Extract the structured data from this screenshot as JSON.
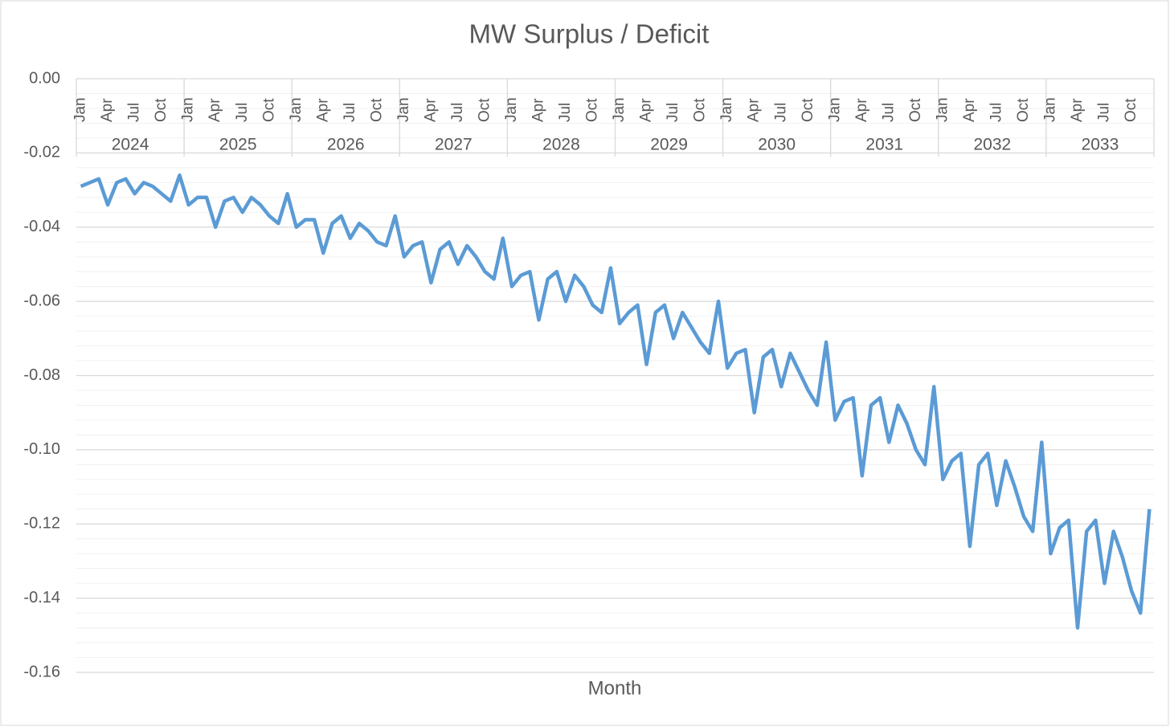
{
  "chart_data": {
    "type": "line",
    "title": "MW Surplus / Deficit",
    "x_label": "Month",
    "categories": [
      "Jan",
      null,
      null,
      "Apr",
      null,
      null,
      "Jul",
      null,
      null,
      "Oct",
      null,
      null,
      "Jan",
      null,
      null,
      "Apr",
      null,
      null,
      "Jul",
      null,
      null,
      "Oct",
      null,
      null,
      "Jan",
      null,
      null,
      "Apr",
      null,
      null,
      "Jul",
      null,
      null,
      "Oct",
      null,
      null,
      "Jan",
      null,
      null,
      "Apr",
      null,
      null,
      "Jul",
      null,
      null,
      "Oct",
      null,
      null,
      "Jan",
      null,
      null,
      "Apr",
      null,
      null,
      "Jul",
      null,
      null,
      "Oct",
      null,
      null,
      "Jan",
      null,
      null,
      "Apr",
      null,
      null,
      "Jul",
      null,
      null,
      "Oct",
      null,
      null,
      "Jan",
      null,
      null,
      "Apr",
      null,
      null,
      "Jul",
      null,
      null,
      "Oct",
      null,
      null,
      "Jan",
      null,
      null,
      "Apr",
      null,
      null,
      "Jul",
      null,
      null,
      "Oct",
      null,
      null,
      "Jan",
      null,
      null,
      "Apr",
      null,
      null,
      "Jul",
      null,
      null,
      "Oct",
      null,
      null,
      "Jan",
      null,
      null,
      "Apr",
      null,
      null,
      "Jul",
      null,
      null,
      "Oct",
      null,
      null
    ],
    "years": [
      "2024",
      "2025",
      "2026",
      "2027",
      "2028",
      "2029",
      "2030",
      "2031",
      "2032",
      "2033"
    ],
    "series": [
      {
        "name": "MW Surplus / Deficit",
        "color": "#5b9bd5",
        "values": [
          -0.029,
          -0.028,
          -0.027,
          -0.034,
          -0.028,
          -0.027,
          -0.031,
          -0.028,
          -0.029,
          -0.031,
          -0.033,
          -0.026,
          -0.034,
          -0.032,
          -0.032,
          -0.04,
          -0.033,
          -0.032,
          -0.036,
          -0.032,
          -0.034,
          -0.037,
          -0.039,
          -0.031,
          -0.04,
          -0.038,
          -0.038,
          -0.047,
          -0.039,
          -0.037,
          -0.043,
          -0.039,
          -0.041,
          -0.044,
          -0.045,
          -0.037,
          -0.048,
          -0.045,
          -0.044,
          -0.055,
          -0.046,
          -0.044,
          -0.05,
          -0.045,
          -0.048,
          -0.052,
          -0.054,
          -0.043,
          -0.056,
          -0.053,
          -0.052,
          -0.065,
          -0.054,
          -0.052,
          -0.06,
          -0.053,
          -0.056,
          -0.061,
          -0.063,
          -0.051,
          -0.066,
          -0.063,
          -0.061,
          -0.077,
          -0.063,
          -0.061,
          -0.07,
          -0.063,
          -0.067,
          -0.071,
          -0.074,
          -0.06,
          -0.078,
          -0.074,
          -0.073,
          -0.09,
          -0.075,
          -0.073,
          -0.083,
          -0.074,
          -0.079,
          -0.084,
          -0.088,
          -0.071,
          -0.092,
          -0.087,
          -0.086,
          -0.107,
          -0.088,
          -0.086,
          -0.098,
          -0.088,
          -0.093,
          -0.1,
          -0.104,
          -0.083,
          -0.108,
          -0.103,
          -0.101,
          -0.126,
          -0.104,
          -0.101,
          -0.115,
          -0.103,
          -0.11,
          -0.118,
          -0.122,
          -0.098,
          -0.128,
          -0.121,
          -0.119,
          -0.148,
          -0.122,
          -0.119,
          -0.136,
          -0.122,
          -0.129,
          -0.138,
          -0.144,
          -0.116
        ]
      }
    ],
    "ylim": [
      -0.16,
      0
    ],
    "yticks": [
      {
        "value": 0,
        "label": "0.00"
      },
      {
        "value": -0.02,
        "label": "-0.02"
      },
      {
        "value": -0.04,
        "label": "-0.04"
      },
      {
        "value": -0.06,
        "label": "-0.06"
      },
      {
        "value": -0.08,
        "label": "-0.08"
      },
      {
        "value": -0.1,
        "label": "-0.10"
      },
      {
        "value": -0.12,
        "label": "-0.12"
      },
      {
        "value": -0.14,
        "label": "-0.14"
      },
      {
        "value": -0.16,
        "label": "-0.16"
      }
    ],
    "yminorticks": [
      -0.004,
      -0.008,
      -0.012,
      -0.016,
      -0.024,
      -0.028,
      -0.032,
      -0.036,
      -0.044,
      -0.048,
      -0.052,
      -0.056,
      -0.064,
      -0.068,
      -0.072,
      -0.076,
      -0.084,
      -0.088,
      -0.092,
      -0.096,
      -0.104,
      -0.108,
      -0.112,
      -0.116,
      -0.124,
      -0.128,
      -0.132,
      -0.136,
      -0.144,
      -0.148,
      -0.152,
      -0.156
    ],
    "grid": true
  }
}
